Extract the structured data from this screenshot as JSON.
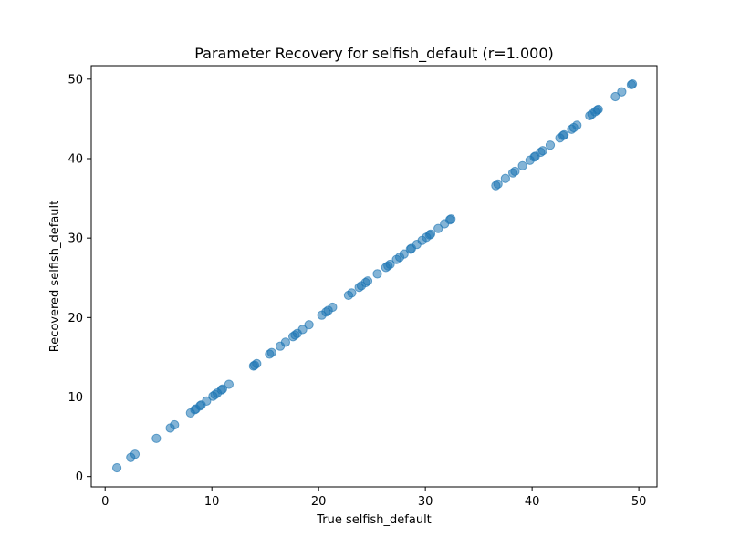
{
  "chart_data": {
    "type": "scatter",
    "title": "Parameter Recovery for selfish_default (r=1.000)",
    "xlabel": "True selfish_default",
    "ylabel": "Recovered selfish_default",
    "xlim": [
      -1.3,
      51.7
    ],
    "ylim": [
      -1.3,
      51.7
    ],
    "xticks": [
      0,
      10,
      20,
      30,
      40,
      50
    ],
    "yticks": [
      0,
      10,
      20,
      30,
      40,
      50
    ],
    "grid": false,
    "legend": "none",
    "marker_color": "#1f77b4",
    "marker_alpha": 0.55,
    "series": [
      {
        "points": [
          [
            1.1,
            1.1
          ],
          [
            2.4,
            2.4
          ],
          [
            2.8,
            2.8
          ],
          [
            4.8,
            4.8
          ],
          [
            6.1,
            6.1
          ],
          [
            6.5,
            6.5
          ],
          [
            8.0,
            8.0
          ],
          [
            8.4,
            8.4
          ],
          [
            8.5,
            8.5
          ],
          [
            8.9,
            8.9
          ],
          [
            9.0,
            9.0
          ],
          [
            9.5,
            9.5
          ],
          [
            10.1,
            10.1
          ],
          [
            10.3,
            10.3
          ],
          [
            10.5,
            10.5
          ],
          [
            10.9,
            10.9
          ],
          [
            11.0,
            11.0
          ],
          [
            11.6,
            11.6
          ],
          [
            13.9,
            13.9
          ],
          [
            14.0,
            14.0
          ],
          [
            14.2,
            14.2
          ],
          [
            15.4,
            15.4
          ],
          [
            15.6,
            15.6
          ],
          [
            16.4,
            16.4
          ],
          [
            16.9,
            16.9
          ],
          [
            17.6,
            17.6
          ],
          [
            17.8,
            17.8
          ],
          [
            18.0,
            18.0
          ],
          [
            18.5,
            18.5
          ],
          [
            19.1,
            19.1
          ],
          [
            20.3,
            20.3
          ],
          [
            20.7,
            20.7
          ],
          [
            20.9,
            20.9
          ],
          [
            21.3,
            21.3
          ],
          [
            22.8,
            22.8
          ],
          [
            23.1,
            23.1
          ],
          [
            23.8,
            23.8
          ],
          [
            24.0,
            24.0
          ],
          [
            24.4,
            24.4
          ],
          [
            24.6,
            24.6
          ],
          [
            25.5,
            25.5
          ],
          [
            26.3,
            26.3
          ],
          [
            26.5,
            26.5
          ],
          [
            26.7,
            26.7
          ],
          [
            27.3,
            27.3
          ],
          [
            27.6,
            27.6
          ],
          [
            28.0,
            28.0
          ],
          [
            28.6,
            28.6
          ],
          [
            28.7,
            28.7
          ],
          [
            29.2,
            29.2
          ],
          [
            29.7,
            29.7
          ],
          [
            30.1,
            30.1
          ],
          [
            30.4,
            30.4
          ],
          [
            30.5,
            30.5
          ],
          [
            31.2,
            31.2
          ],
          [
            31.8,
            31.8
          ],
          [
            32.3,
            32.3
          ],
          [
            32.4,
            32.4
          ],
          [
            36.6,
            36.6
          ],
          [
            36.8,
            36.8
          ],
          [
            37.5,
            37.5
          ],
          [
            38.2,
            38.2
          ],
          [
            38.4,
            38.4
          ],
          [
            39.1,
            39.1
          ],
          [
            39.8,
            39.8
          ],
          [
            40.2,
            40.2
          ],
          [
            40.3,
            40.3
          ],
          [
            40.8,
            40.8
          ],
          [
            41.0,
            41.0
          ],
          [
            41.7,
            41.7
          ],
          [
            42.6,
            42.6
          ],
          [
            42.9,
            42.9
          ],
          [
            43.0,
            43.0
          ],
          [
            43.7,
            43.7
          ],
          [
            43.9,
            43.9
          ],
          [
            44.2,
            44.2
          ],
          [
            45.4,
            45.4
          ],
          [
            45.6,
            45.6
          ],
          [
            45.9,
            45.9
          ],
          [
            46.1,
            46.1
          ],
          [
            46.2,
            46.2
          ],
          [
            47.8,
            47.8
          ],
          [
            48.4,
            48.4
          ],
          [
            49.3,
            49.3
          ],
          [
            49.4,
            49.4
          ]
        ]
      }
    ]
  }
}
